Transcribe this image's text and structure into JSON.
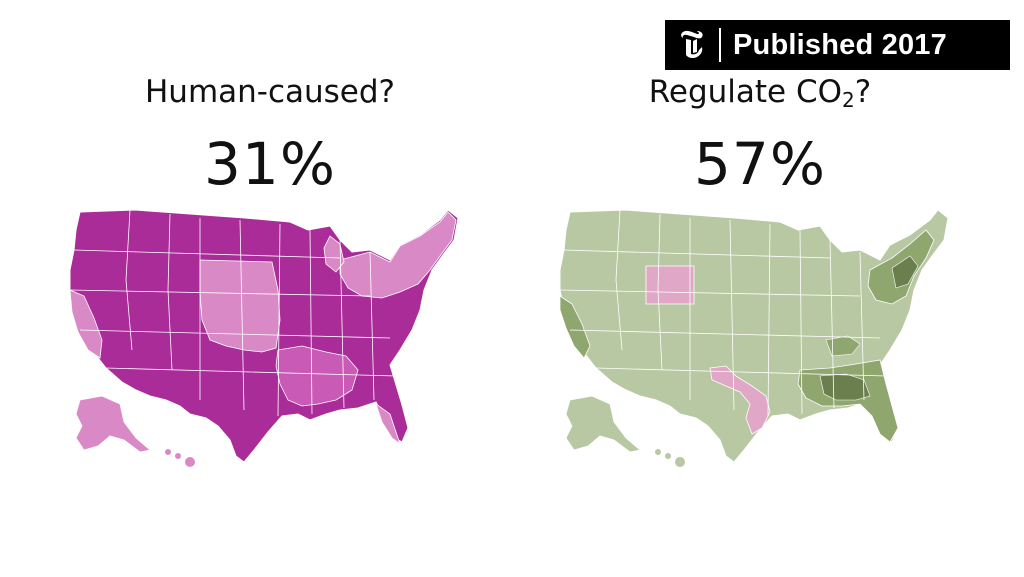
{
  "badge": {
    "logo_icon": "nyt-t-logo-icon",
    "label": "Published 2017"
  },
  "panels": [
    {
      "question_main": "Human-caused?",
      "question_sub": "",
      "question_tail": "",
      "percent": "31%",
      "colors": {
        "high": "#a92c99",
        "mid": "#c95ab6",
        "low": "#d98ac6"
      }
    },
    {
      "question_main": "Regulate CO",
      "question_sub": "2",
      "question_tail": "?",
      "percent": "57%",
      "colors": {
        "base": "#b7c8a2",
        "mid": "#8fa66f",
        "dark": "#6b7f4e",
        "pink": "#e0a8c6"
      }
    }
  ]
}
